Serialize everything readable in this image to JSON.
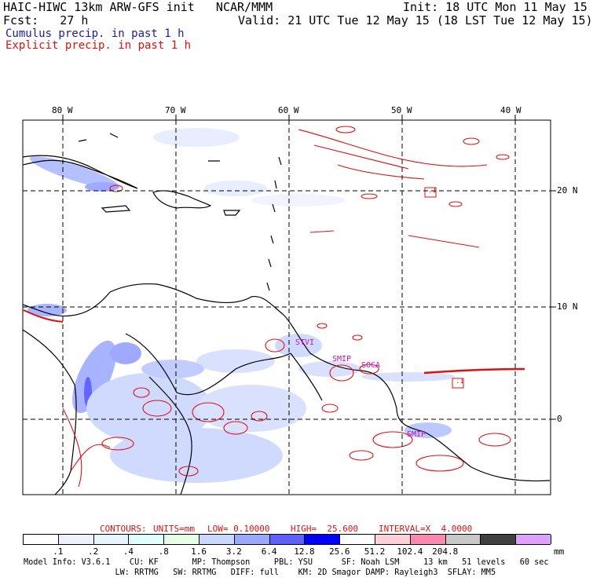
{
  "header": {
    "line1_left": "HAIC-HIWC 13km ARW-GFS init   NCAR/MMM",
    "line1_right": "Init: 18 UTC Mon 11 May 15",
    "line2_left": "Fcst:   27 h",
    "line2_right": "Valid: 21 UTC Tue 12 May 15 (18 LST Tue 12 May 15)",
    "legend_cumulus": "Cumulus precip. in past 1 h",
    "legend_explicit": "Explicit precip. in past 1 h",
    "cumulus_color": "#1a1aa6",
    "explicit_color": "#e01010"
  },
  "map": {
    "lon_labels": [
      "80 W",
      "70 W",
      "60 W",
      "50 W",
      "40 W"
    ],
    "lat_labels": [
      "20 N",
      "10 N",
      "0"
    ],
    "place_labels": [
      "STVI",
      "SMIP",
      "SOCA",
      "SMIP"
    ],
    "place_color": "#c010c0",
    "contour_values": [
      ".1",
      ".1"
    ]
  },
  "contour_info": {
    "contours": "CONTOURS:",
    "units": "UNITS=mm",
    "low": "LOW= 0.10000",
    "high": "HIGH=  25.600",
    "interval": "INTERVAL=X  4.0000"
  },
  "colorbar": {
    "colors": [
      "#ffffff",
      "#f0f0ff",
      "#e8f4ff",
      "#e0ffff",
      "#e8ffe8",
      "#c8d8ff",
      "#9aa8ff",
      "#6060ff",
      "#0000ff",
      "#ffffff",
      "#ffd0d8",
      "#ff88b0",
      "#c8c8c8",
      "#404040",
      "#e0a0ff"
    ],
    "tick_labels": [
      ".1",
      ".2",
      ".4",
      ".8",
      "1.6",
      "3.2",
      "6.4",
      "12.8",
      "25.6",
      "51.2",
      "102.4",
      "204.8"
    ],
    "unit": "mm"
  },
  "model_info": {
    "line1": "Model Info: V3.6.1    CU: KF       MP: Thompson     PBL: YSU      SF: Noah LSM     13 km   51 levels   60 sec",
    "line2": "                   LW: RRTMG   SW: RRTMG   DIFF: full    KM: 2D Smagor DAMP: Rayleigh3  SFLAY: MM5"
  }
}
